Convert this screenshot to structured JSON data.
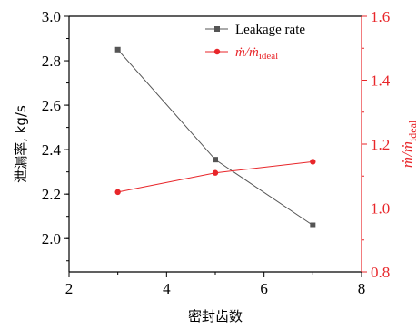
{
  "chart_data": {
    "type": "line",
    "xlabel": "密封齿数",
    "xlim": [
      2,
      8
    ],
    "x_ticks": [
      "2",
      "4",
      "6",
      "8"
    ],
    "y_left": {
      "label": "泄漏率, kg/s",
      "lim": [
        1.85,
        3.0
      ],
      "ticks": [
        "2.0",
        "2.2",
        "2.4",
        "2.6",
        "2.8",
        "3.0"
      ],
      "color": "#000000"
    },
    "y_right": {
      "label_main": "ṁ/ṁ",
      "label_sub": "ideal",
      "lim": [
        0.8,
        1.6
      ],
      "ticks": [
        "0.8",
        "1.0",
        "1.2",
        "1.4",
        "1.6"
      ],
      "color": "#e8262a"
    },
    "series": [
      {
        "name": "Leakage rate",
        "axis": "left",
        "color": "#555555",
        "marker": "square",
        "x": [
          3,
          5,
          7
        ],
        "y": [
          2.85,
          2.355,
          2.06
        ]
      },
      {
        "name_main": "ṁ/ṁ",
        "name_sub": "ideal",
        "axis": "right",
        "color": "#e8262a",
        "marker": "circle",
        "x": [
          3,
          5,
          7
        ],
        "y": [
          1.05,
          1.11,
          1.145
        ]
      }
    ],
    "legend_position": "top-right",
    "grid": false
  }
}
